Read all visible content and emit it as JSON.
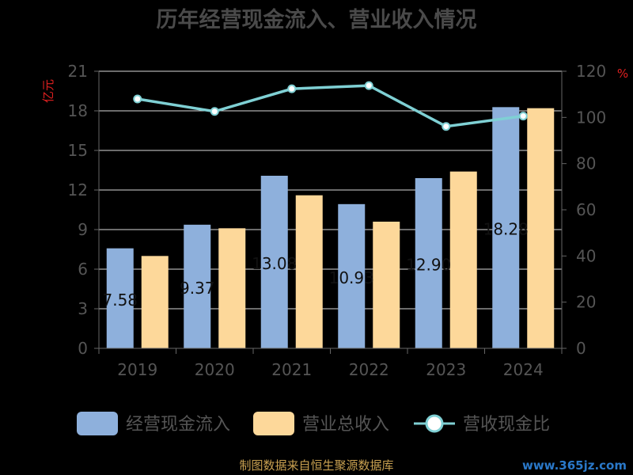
{
  "chart_data": {
    "type": "bar",
    "title": "历年经营现金流入、营业收入情况",
    "categories": [
      "2019",
      "2020",
      "2021",
      "2022",
      "2023",
      "2024"
    ],
    "y_left": {
      "unit": "亿元",
      "ticks": [
        "0",
        "3",
        "6",
        "9",
        "12",
        "15",
        "18",
        "21"
      ],
      "ylim": [
        0,
        21
      ]
    },
    "y_right": {
      "unit": "%",
      "ticks": [
        "0",
        "20",
        "40",
        "60",
        "80",
        "100",
        "120"
      ],
      "ylim": [
        0,
        120
      ]
    },
    "series": [
      {
        "name": "经营现金流入",
        "type": "bar",
        "color": "#8eb0dc",
        "values": [
          7.58,
          9.37,
          13.08,
          10.93,
          12.9,
          18.28
        ],
        "labels": [
          "7.58",
          "9.37",
          "13.08",
          "10.93",
          "12.90",
          "18.28"
        ]
      },
      {
        "name": "营业总收入",
        "type": "bar",
        "color": "#fdd89a",
        "values": [
          7.0,
          9.1,
          11.6,
          9.6,
          13.4,
          18.2
        ]
      },
      {
        "name": "营收现金比",
        "type": "line",
        "axis": "right",
        "color": "#7fd0d4",
        "values": [
          108.0,
          102.6,
          112.4,
          113.8,
          96.1,
          100.6
        ]
      }
    ],
    "grid": true,
    "legend": "bottom"
  },
  "footer": {
    "source": "制图数据来自恒生聚源数据库",
    "watermark": "www.365jz.com"
  }
}
